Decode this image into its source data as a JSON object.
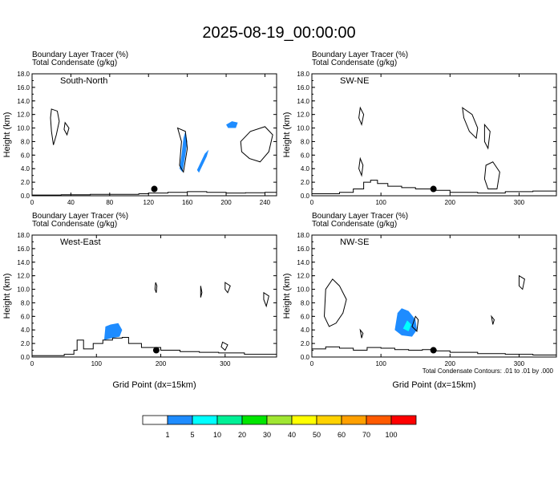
{
  "title": "2025-08-19_00:00:00",
  "contour_note": "Total Condensate Contours: .01 to .01 by .000",
  "colorbar": {
    "colors": [
      "#ffffff",
      "#1e8cff",
      "#00ffff",
      "#00f096",
      "#00e600",
      "#a0e632",
      "#ffff00",
      "#ffd200",
      "#ffa000",
      "#ff5a00",
      "#ff0000"
    ],
    "labels": [
      "1",
      "5",
      "10",
      "20",
      "30",
      "40",
      "50",
      "60",
      "70",
      "100"
    ]
  },
  "chart_data": [
    {
      "type": "contour",
      "name": "South-North",
      "line1": "Boundary Layer Tracer   (%)",
      "line2": "Total Condensate   (g/kg)",
      "ylabel": "Height (km)",
      "xlabel": "",
      "xlim": [
        0,
        252
      ],
      "ylim": [
        0,
        18
      ],
      "xticks": [
        0,
        40,
        80,
        120,
        160,
        200,
        240
      ],
      "yticks": [
        0,
        2,
        4,
        6,
        8,
        10,
        12,
        14,
        16,
        18
      ],
      "marker": {
        "x": 126,
        "y": 1.0
      },
      "terrain": [
        [
          0,
          0.1
        ],
        [
          30,
          0.15
        ],
        [
          60,
          0.2
        ],
        [
          90,
          0.2
        ],
        [
          110,
          0.3
        ],
        [
          120,
          0.4
        ],
        [
          140,
          0.5
        ],
        [
          160,
          0.6
        ],
        [
          180,
          0.5
        ],
        [
          200,
          0.4
        ],
        [
          220,
          0.45
        ],
        [
          240,
          0.5
        ],
        [
          252,
          0.55
        ]
      ],
      "shaded": [
        {
          "color_index": 1,
          "points": [
            [
              152,
              4.0
            ],
            [
              154,
              6.0
            ],
            [
              156,
              8.5
            ],
            [
              158,
              9.5
            ],
            [
              160,
              8.0
            ],
            [
              158,
              6.0
            ],
            [
              155,
              3.5
            ]
          ]
        },
        {
          "color_index": 1,
          "points": [
            [
              170,
              3.8
            ],
            [
              178,
              6.2
            ],
            [
              182,
              6.8
            ],
            [
              180,
              5.8
            ],
            [
              172,
              3.4
            ]
          ]
        },
        {
          "color_index": 1,
          "points": [
            [
              200,
              10.5
            ],
            [
              206,
              11.0
            ],
            [
              212,
              10.8
            ],
            [
              210,
              10.0
            ],
            [
              202,
              10.0
            ]
          ]
        }
      ],
      "contours": [
        [
          [
            20,
            12.8
          ],
          [
            26,
            12.5
          ],
          [
            28,
            11.0
          ],
          [
            25,
            9.0
          ],
          [
            22,
            7.5
          ],
          [
            20,
            9.5
          ],
          [
            19,
            11.5
          ]
        ],
        [
          [
            34,
            10.8
          ],
          [
            38,
            10.0
          ],
          [
            36,
            9.0
          ],
          [
            33,
            9.8
          ]
        ],
        [
          [
            150,
            10.0
          ],
          [
            158,
            9.5
          ],
          [
            160,
            7.0
          ],
          [
            156,
            3.5
          ],
          [
            152,
            4.5
          ],
          [
            154,
            8.0
          ]
        ],
        [
          [
            215,
            8.0
          ],
          [
            225,
            9.5
          ],
          [
            240,
            10.2
          ],
          [
            248,
            9.0
          ],
          [
            244,
            6.5
          ],
          [
            235,
            5.0
          ],
          [
            224,
            5.5
          ],
          [
            216,
            6.5
          ]
        ]
      ]
    },
    {
      "type": "contour",
      "name": "SW-NE",
      "line1": "Boundary Layer Tracer   (%)",
      "line2": "Total Condensate   (g/kg)",
      "ylabel": "Height (km)",
      "xlabel": "",
      "xlim": [
        0,
        354
      ],
      "ylim": [
        0,
        18
      ],
      "xticks": [
        0,
        100,
        200,
        300
      ],
      "yticks": [
        0,
        2,
        4,
        6,
        8,
        10,
        12,
        14,
        16,
        18
      ],
      "marker": {
        "x": 176,
        "y": 1.0
      },
      "terrain": [
        [
          0,
          0.3
        ],
        [
          40,
          0.5
        ],
        [
          60,
          1.0
        ],
        [
          75,
          2.0
        ],
        [
          85,
          2.3
        ],
        [
          95,
          1.8
        ],
        [
          110,
          1.4
        ],
        [
          130,
          1.2
        ],
        [
          150,
          1.0
        ],
        [
          175,
          0.8
        ],
        [
          200,
          0.5
        ],
        [
          240,
          0.4
        ],
        [
          280,
          0.6
        ],
        [
          320,
          0.7
        ],
        [
          354,
          0.8
        ]
      ],
      "shaded": [],
      "contours": [
        [
          [
            70,
            13.0
          ],
          [
            75,
            12.0
          ],
          [
            72,
            10.5
          ],
          [
            68,
            11.5
          ]
        ],
        [
          [
            218,
            13.0
          ],
          [
            232,
            12.0
          ],
          [
            240,
            10.0
          ],
          [
            238,
            8.5
          ],
          [
            228,
            9.5
          ],
          [
            220,
            11.5
          ]
        ],
        [
          [
            250,
            10.5
          ],
          [
            258,
            9.5
          ],
          [
            255,
            7.0
          ],
          [
            250,
            8.0
          ]
        ],
        [
          [
            70,
            5.5
          ],
          [
            74,
            4.5
          ],
          [
            72,
            3.0
          ],
          [
            68,
            4.0
          ]
        ],
        [
          [
            252,
            4.5
          ],
          [
            262,
            5.0
          ],
          [
            272,
            3.5
          ],
          [
            268,
            1.0
          ],
          [
            255,
            1.0
          ],
          [
            250,
            2.5
          ]
        ]
      ]
    },
    {
      "type": "contour",
      "name": "West-East",
      "line1": "Boundary Layer Tracer   (%)",
      "line2": "Total Condensate   (g/kg)",
      "ylabel": "Height (km)",
      "xlabel": "Grid Point (dx=15km)",
      "xlim": [
        0,
        380
      ],
      "ylim": [
        0,
        18
      ],
      "xticks": [
        0,
        100,
        200,
        300
      ],
      "yticks": [
        0,
        2,
        4,
        6,
        8,
        10,
        12,
        14,
        16,
        18
      ],
      "marker": {
        "x": 193,
        "y": 1.0
      },
      "terrain": [
        [
          0,
          0.2
        ],
        [
          50,
          0.4
        ],
        [
          65,
          1.0
        ],
        [
          70,
          2.5
        ],
        [
          80,
          1.2
        ],
        [
          95,
          2.0
        ],
        [
          110,
          2.5
        ],
        [
          125,
          2.8
        ],
        [
          140,
          2.9
        ],
        [
          150,
          2.0
        ],
        [
          170,
          1.4
        ],
        [
          200,
          1.0
        ],
        [
          230,
          0.8
        ],
        [
          260,
          0.7
        ],
        [
          290,
          0.6
        ],
        [
          330,
          0.4
        ],
        [
          380,
          0.3
        ]
      ],
      "shaded": [
        {
          "color_index": 1,
          "points": [
            [
              112,
              2.5
            ],
            [
              114,
              4.5
            ],
            [
              122,
              4.8
            ],
            [
              134,
              5.0
            ],
            [
              140,
              4.0
            ],
            [
              136,
              3.0
            ],
            [
              124,
              2.8
            ]
          ]
        }
      ],
      "contours": [
        [
          [
            192,
            11.0
          ],
          [
            194,
            10.5
          ],
          [
            193,
            9.5
          ],
          [
            191,
            10.0
          ]
        ],
        [
          [
            262,
            10.5
          ],
          [
            264,
            9.5
          ],
          [
            262,
            8.8
          ]
        ],
        [
          [
            300,
            11.0
          ],
          [
            308,
            10.5
          ],
          [
            304,
            9.5
          ],
          [
            300,
            10.0
          ]
        ],
        [
          [
            360,
            9.5
          ],
          [
            368,
            9.0
          ],
          [
            364,
            7.5
          ],
          [
            360,
            8.5
          ]
        ],
        [
          [
            296,
            2.2
          ],
          [
            304,
            1.8
          ],
          [
            300,
            1.0
          ],
          [
            294,
            1.5
          ]
        ]
      ]
    },
    {
      "type": "contour",
      "name": "NW-SE",
      "line1": "Boundary Layer Tracer   (%)",
      "line2": "Total Condensate   (g/kg)",
      "ylabel": "Height (km)",
      "xlabel": "Grid Point (dx=15km)",
      "xlim": [
        0,
        354
      ],
      "ylim": [
        0,
        18
      ],
      "xticks": [
        0,
        100,
        200,
        300
      ],
      "yticks": [
        0,
        2,
        4,
        6,
        8,
        10,
        12,
        14,
        16,
        18
      ],
      "marker": {
        "x": 176,
        "y": 1.0
      },
      "terrain": [
        [
          0,
          1.2
        ],
        [
          20,
          1.5
        ],
        [
          40,
          1.3
        ],
        [
          60,
          1.0
        ],
        [
          80,
          1.4
        ],
        [
          100,
          1.3
        ],
        [
          120,
          1.1
        ],
        [
          140,
          1.0
        ],
        [
          160,
          1.1
        ],
        [
          180,
          0.9
        ],
        [
          200,
          0.7
        ],
        [
          240,
          0.5
        ],
        [
          280,
          0.4
        ],
        [
          320,
          0.3
        ],
        [
          354,
          0.3
        ]
      ],
      "shaded": [
        {
          "color_index": 1,
          "points": [
            [
              120,
              4.0
            ],
            [
              124,
              6.5
            ],
            [
              130,
              7.2
            ],
            [
              140,
              6.8
            ],
            [
              150,
              5.5
            ],
            [
              152,
              4.0
            ],
            [
              145,
              3.0
            ],
            [
              130,
              3.2
            ]
          ]
        },
        {
          "color_index": 2,
          "points": [
            [
              132,
              4.2
            ],
            [
              138,
              5.4
            ],
            [
              144,
              4.8
            ],
            [
              140,
              3.8
            ]
          ]
        }
      ],
      "contours": [
        [
          [
            20,
            10.0
          ],
          [
            30,
            11.5
          ],
          [
            40,
            10.5
          ],
          [
            50,
            8.5
          ],
          [
            45,
            6.5
          ],
          [
            35,
            5.0
          ],
          [
            25,
            4.5
          ],
          [
            18,
            6.0
          ]
        ],
        [
          [
            145,
            4.5
          ],
          [
            150,
            6.0
          ],
          [
            154,
            5.5
          ],
          [
            152,
            3.8
          ]
        ],
        [
          [
            300,
            12.0
          ],
          [
            308,
            11.5
          ],
          [
            305,
            10.0
          ],
          [
            300,
            10.5
          ]
        ],
        [
          [
            260,
            6.0
          ],
          [
            264,
            5.5
          ],
          [
            262,
            4.8
          ]
        ],
        [
          [
            70,
            4.0
          ],
          [
            74,
            3.5
          ],
          [
            72,
            2.8
          ]
        ]
      ]
    }
  ]
}
